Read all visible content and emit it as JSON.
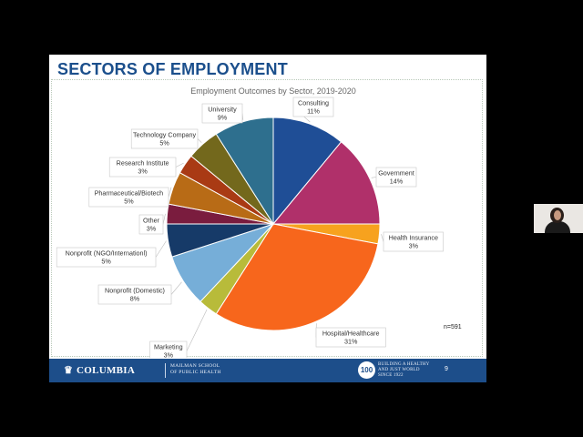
{
  "slide": {
    "title": "SECTORS OF EMPLOYMENT",
    "page_number": "9"
  },
  "footer": {
    "logo_text": "COLUMBIA",
    "logo_icon": "crown-icon",
    "school_line1": "MAILMAN SCHOOL",
    "school_line2": "OF PUBLIC HEALTH",
    "badge": "100",
    "tagline_line1": "BUILDING A HEALTHY",
    "tagline_line2": "AND JUST WORLD",
    "tagline_line3": "SINCE 1922",
    "brand_color": "#1d4e8a"
  },
  "presenter": {
    "icon": "presenter-video-thumbnail"
  },
  "chart_data": {
    "type": "pie",
    "title": "Employment Outcomes by Sector, 2019-2020",
    "note": "n=591",
    "legend": "none",
    "slices": [
      {
        "label": "Consulting",
        "value": 11,
        "display": "11%",
        "color": "#1f4e96"
      },
      {
        "label": "Government",
        "value": 14,
        "display": "14%",
        "color": "#b0306a"
      },
      {
        "label": "Health Insurance",
        "value": 3,
        "display": "3%",
        "color": "#f7a21e"
      },
      {
        "label": "Hospital/Healthcare",
        "value": 31,
        "display": "31%",
        "color": "#f7661c"
      },
      {
        "label": "Marketing",
        "value": 3,
        "display": "3%",
        "color": "#b8bb3a"
      },
      {
        "label": "Nonprofit (Domestic)",
        "value": 8,
        "display": "8%",
        "color": "#76aed8"
      },
      {
        "label": "Nonprofit (NGO/Internationl)",
        "value": 5,
        "display": "5%",
        "color": "#163a68"
      },
      {
        "label": "Other",
        "value": 3,
        "display": "3%",
        "color": "#7a1c3e"
      },
      {
        "label": "Pharmaceutical/Biotech",
        "value": 5,
        "display": "5%",
        "color": "#b86b16"
      },
      {
        "label": "Research Institute",
        "value": 3,
        "display": "3%",
        "color": "#a93a14"
      },
      {
        "label": "Technology Company",
        "value": 5,
        "display": "5%",
        "color": "#73681c"
      },
      {
        "label": "University",
        "value": 9,
        "display": "9%",
        "color": "#2e6f8e"
      }
    ]
  }
}
